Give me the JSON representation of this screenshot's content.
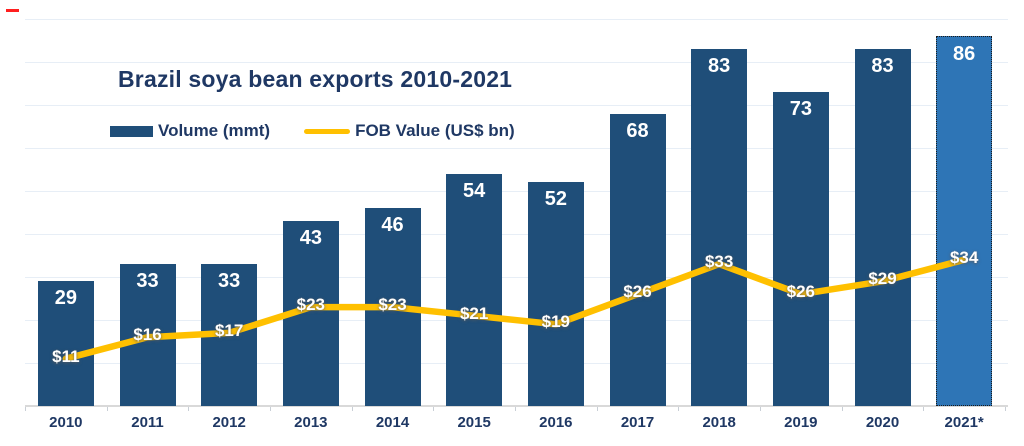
{
  "chart_data": {
    "type": "bar",
    "title": "Brazil soya bean exports 2010-2021",
    "categories": [
      "2010",
      "2011",
      "2012",
      "2013",
      "2014",
      "2015",
      "2016",
      "2017",
      "2018",
      "2019",
      "2020",
      "2021*"
    ],
    "series": [
      {
        "name": "Volume (mmt)",
        "type": "bar",
        "values": [
          29,
          33,
          33,
          43,
          46,
          54,
          52,
          68,
          83,
          73,
          83,
          86
        ],
        "labels": [
          "29",
          "33",
          "33",
          "43",
          "46",
          "54",
          "52",
          "68",
          "83",
          "73",
          "83",
          "86"
        ]
      },
      {
        "name": "FOB Value (US$ bn)",
        "type": "line",
        "values": [
          11,
          16,
          17,
          23,
          23,
          21,
          19,
          26,
          33,
          26,
          29,
          34
        ],
        "labels": [
          "$11",
          "$16",
          "$17",
          "$23",
          "$23",
          "$21",
          "$19",
          "$26",
          "$33",
          "$26",
          "$29",
          "$34"
        ]
      }
    ],
    "xlabel": "",
    "ylabel": "",
    "ylim": [
      0,
      90
    ],
    "grid_step": 10,
    "grid": true,
    "legend_position": "top-left",
    "highlight_last_category": true
  },
  "colors": {
    "bar": "#1F4E79",
    "bar_highlight": "#2E75B6",
    "highlight_border": "#1a1a1a",
    "line": "#FFC000",
    "text_navy": "#1F3864",
    "value_label": "#FFFFFF",
    "gridline": "#E7EEF6",
    "axis_line": "#D9D9D9",
    "corner_mark": "#FF1F1F"
  }
}
